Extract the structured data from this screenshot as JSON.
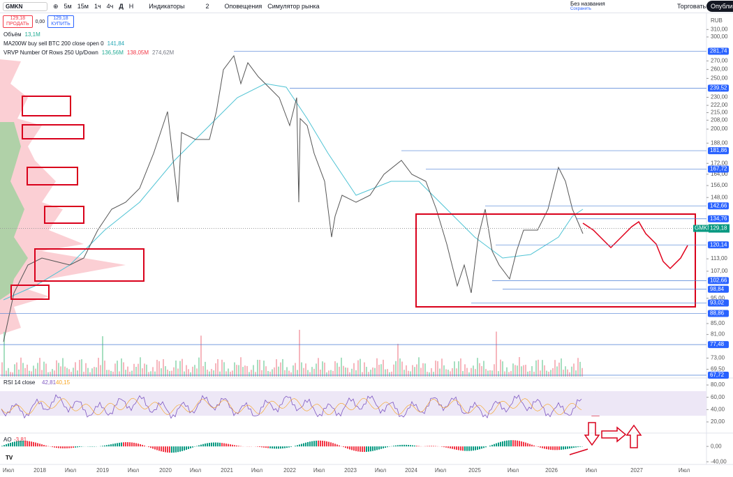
{
  "toolbar": {
    "symbol": "GMKN",
    "intervals": [
      "5м",
      "15м",
      "1ч",
      "4ч",
      "Д",
      "Н"
    ],
    "indicators": "Индикаторы",
    "layout_count": "2",
    "alerts": "Оповещения",
    "simulator": "Симулятор рынка",
    "layout_name": "Без названия",
    "saved": "Сохранить",
    "trade": "Торговать",
    "publish": "Опубликовать"
  },
  "order_panel": {
    "sell_price": "129,18",
    "sell": "ПРОДАТЬ",
    "spread": "0,00",
    "buy_price": "129,18",
    "buy": "КУПИТЬ"
  },
  "legend": [
    {
      "name": "Объём",
      "values": [
        "13,1M"
      ]
    },
    {
      "name": "MA200W buy sell BTC 200 close open 0",
      "values": [
        "141,84"
      ]
    },
    {
      "name": "VRVP Number Of Rows 250 Up/Down",
      "values": [
        "136,56M",
        "138,05M",
        "274,62M"
      ]
    }
  ],
  "price_axis": {
    "currency": "RUB",
    "scale": "log",
    "ylim": [
      67.3,
      334
    ],
    "ticks": [
      {
        "value": 310,
        "label": "310,00"
      },
      {
        "value": 300,
        "label": "300,00"
      },
      {
        "value": 270,
        "label": "270,00"
      },
      {
        "value": 260,
        "label": "260,00"
      },
      {
        "value": 250,
        "label": "250,00"
      },
      {
        "value": 230,
        "label": "230,00"
      },
      {
        "value": 222,
        "label": "222,00"
      },
      {
        "value": 215,
        "label": "215,00"
      },
      {
        "value": 208,
        "label": "208,00"
      },
      {
        "value": 200,
        "label": "200,00"
      },
      {
        "value": 188,
        "label": "188,00"
      },
      {
        "value": 172,
        "label": "172,00"
      },
      {
        "value": 164,
        "label": "164,00"
      },
      {
        "value": 156,
        "label": "156,00"
      },
      {
        "value": 148,
        "label": "148,00"
      },
      {
        "value": 113,
        "label": "113,00"
      },
      {
        "value": 107,
        "label": "107,00"
      },
      {
        "value": 95,
        "label": "95,00"
      },
      {
        "value": 85,
        "label": "85,00"
      },
      {
        "value": 81,
        "label": "81,00"
      },
      {
        "value": 73,
        "label": "73,00"
      },
      {
        "value": 69.5,
        "label": "69,50"
      }
    ],
    "levels": [
      {
        "value": 281.74,
        "label": "281,74"
      },
      {
        "value": 239.52,
        "label": "239,52"
      },
      {
        "value": 181.86,
        "label": "181,86"
      },
      {
        "value": 167.72,
        "label": "167,72"
      },
      {
        "value": 142.66,
        "label": "142,66"
      },
      {
        "value": 134.76,
        "label": "134,76"
      },
      {
        "value": 120.14,
        "label": "120,14"
      },
      {
        "value": 102.66,
        "label": "102,66"
      },
      {
        "value": 98.84,
        "label": "98,84"
      },
      {
        "value": 93.02,
        "label": "93,02"
      },
      {
        "value": 88.86,
        "label": "88,86"
      },
      {
        "value": 77.48,
        "label": "77,48"
      },
      {
        "value": 67.72,
        "label": "67,72"
      }
    ],
    "last": {
      "symbol": "GMKN",
      "value": 129.18,
      "label": "129,18"
    }
  },
  "rsi": {
    "title": "RSI 14 close",
    "values": [
      "42,81",
      "40,15"
    ],
    "ylim": [
      3,
      88
    ],
    "ticks": [
      {
        "value": 80,
        "label": "80,00"
      },
      {
        "value": 60,
        "label": "60,00"
      },
      {
        "value": 40,
        "label": "40,00"
      },
      {
        "value": 20,
        "label": "20,00"
      }
    ]
  },
  "ao": {
    "title": "AO",
    "value": "-3,81",
    "ylim": [
      -47,
      33
    ],
    "ticks": [
      {
        "value": 0,
        "label": "0,00"
      },
      {
        "value": -40,
        "label": "-40,00"
      }
    ]
  },
  "time_axis": [
    "Июл",
    "2018",
    "Июл",
    "2019",
    "Июл",
    "2020",
    "Июл",
    "2021",
    "Июл",
    "2022",
    "Июл",
    "2023",
    "Июл",
    "2024",
    "Июл",
    "2025",
    "Июл",
    "2026",
    "Июл",
    "2027",
    "Июл"
  ]
}
